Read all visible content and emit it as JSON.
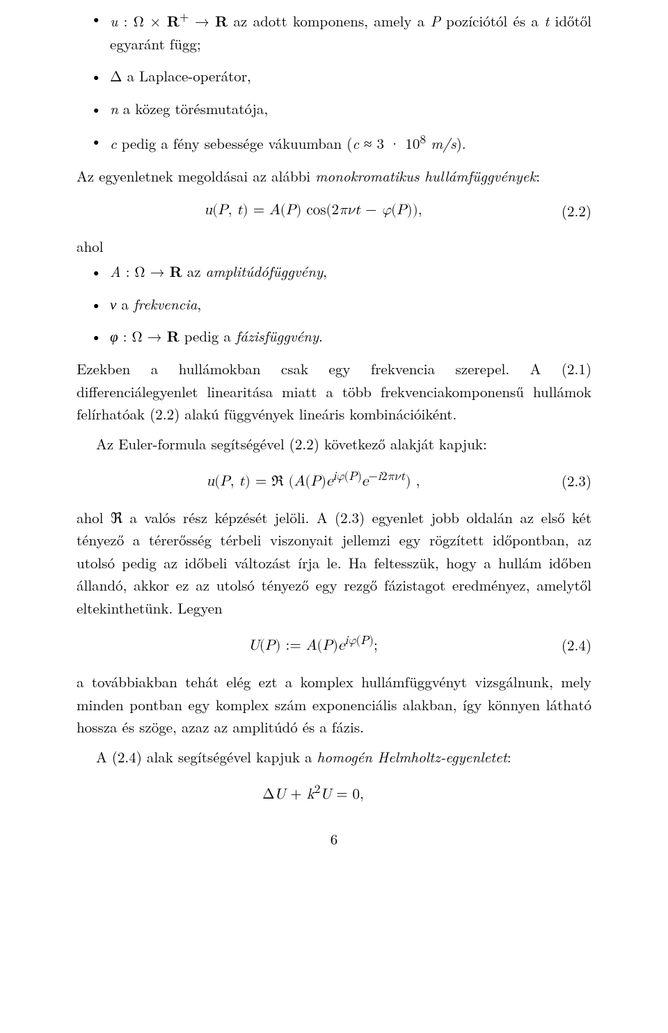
{
  "bullets1": [
    "<span class='it'>u</span> : Ω × <b>R</b><sup>+</sup> → <b>R</b> az adott komponens, amely a <span class='it'>P</span> pozíciótól és a <span class='it'>t</span> időtől egyaránt függ;",
    "Δ a Laplace-operátor,",
    "<span class='it'>n</span> a közeg törésmutatója,",
    "<span class='it'>c</span> pedig a fény sebessége vákuumban (<span class='it'>c</span> ≈ 3 · 10<sup>8</sup> <span class='it'>m/s</span>)."
  ],
  "para1": "Az egyenletnek megoldásai az alábbi <span class='it'>monokromatikus hullámfüggvények</span>:",
  "eq22": "<span class='it'>u</span>(<span class='it'>P</span>, <span class='it'>t</span>) = <span class='it'>A</span>(<span class='it'>P</span>) cos(2<span class='it'>πνt</span> − <span class='it'>φ</span>(<span class='it'>P</span>)),",
  "eq22num": "(2.2)",
  "ahol": "ahol",
  "bullets2": [
    "<span class='it'>A</span> : Ω → <b>R</b> az <span class='it'>amplitúdófüggvény</span>,",
    "<span class='it'>ν</span> a <span class='it'>frekvencia</span>,",
    "<span class='it'>φ</span> : Ω → <b>R</b> pedig a <span class='it'>fázisfüggvény</span>."
  ],
  "para2": "Ezekben a hullámokban csak egy frekvencia szerepel. A (2.1) differenciálegyenlet linearitása miatt a több frekvenciakomponensű hullámok felírhatóak (2.2) alakú függvények lineáris kombinációiként.",
  "para3": "Az Euler-formula segítségével (2.2) következő alakját kapjuk:",
  "eq23": "<span class='it'>u</span>(<span class='it'>P</span>, <span class='it'>t</span>) = ℜ (<span class='it'>A</span>(<span class='it'>P</span>)<span class='it'>e</span><sup><span class='it'>iφ</span>(<span class='it'>P</span>)</sup><span class='it'>e</span><sup>−<span class='it'>i</span>2<span class='it'>πνt</span></sup>) ,",
  "eq23num": "(2.3)",
  "para4": "ahol ℜ a valós rész képzését jelöli. A (2.3) egyenlet jobb oldalán az első két tényező a térerősség térbeli viszonyait jellemzi egy rögzített időpontban, az utolsó pedig az időbeli változást írja le. Ha feltesszük, hogy a hullám időben állandó, akkor ez az utolsó tényező egy rezgő fázistagot eredményez, amelytől eltekinthetünk. Legyen",
  "eq24": "<span class='it'>U</span>(<span class='it'>P</span>) := <span class='it'>A</span>(<span class='it'>P</span>)<span class='it'>e</span><sup><span class='it'>iφ</span>(<span class='it'>P</span>)</sup>;",
  "eq24num": "(2.4)",
  "para5": "a továbbiakban tehát elég ezt a komplex hullámfüggvényt vizsgálnunk, mely minden pontban egy komplex szám exponenciális alakban, így könnyen látható hossza és szöge, azaz az amplitúdó és a fázis.",
  "para6": "A (2.4) alak segítségével kapjuk a <span class='it'>homogén Helmholtz-egyenletet</span>:",
  "eq25": "Δ<span class='it'>U</span> + <span class='it'>k</span><sup>2</sup><span class='it'>U</span> = 0,",
  "pagenum": "6"
}
